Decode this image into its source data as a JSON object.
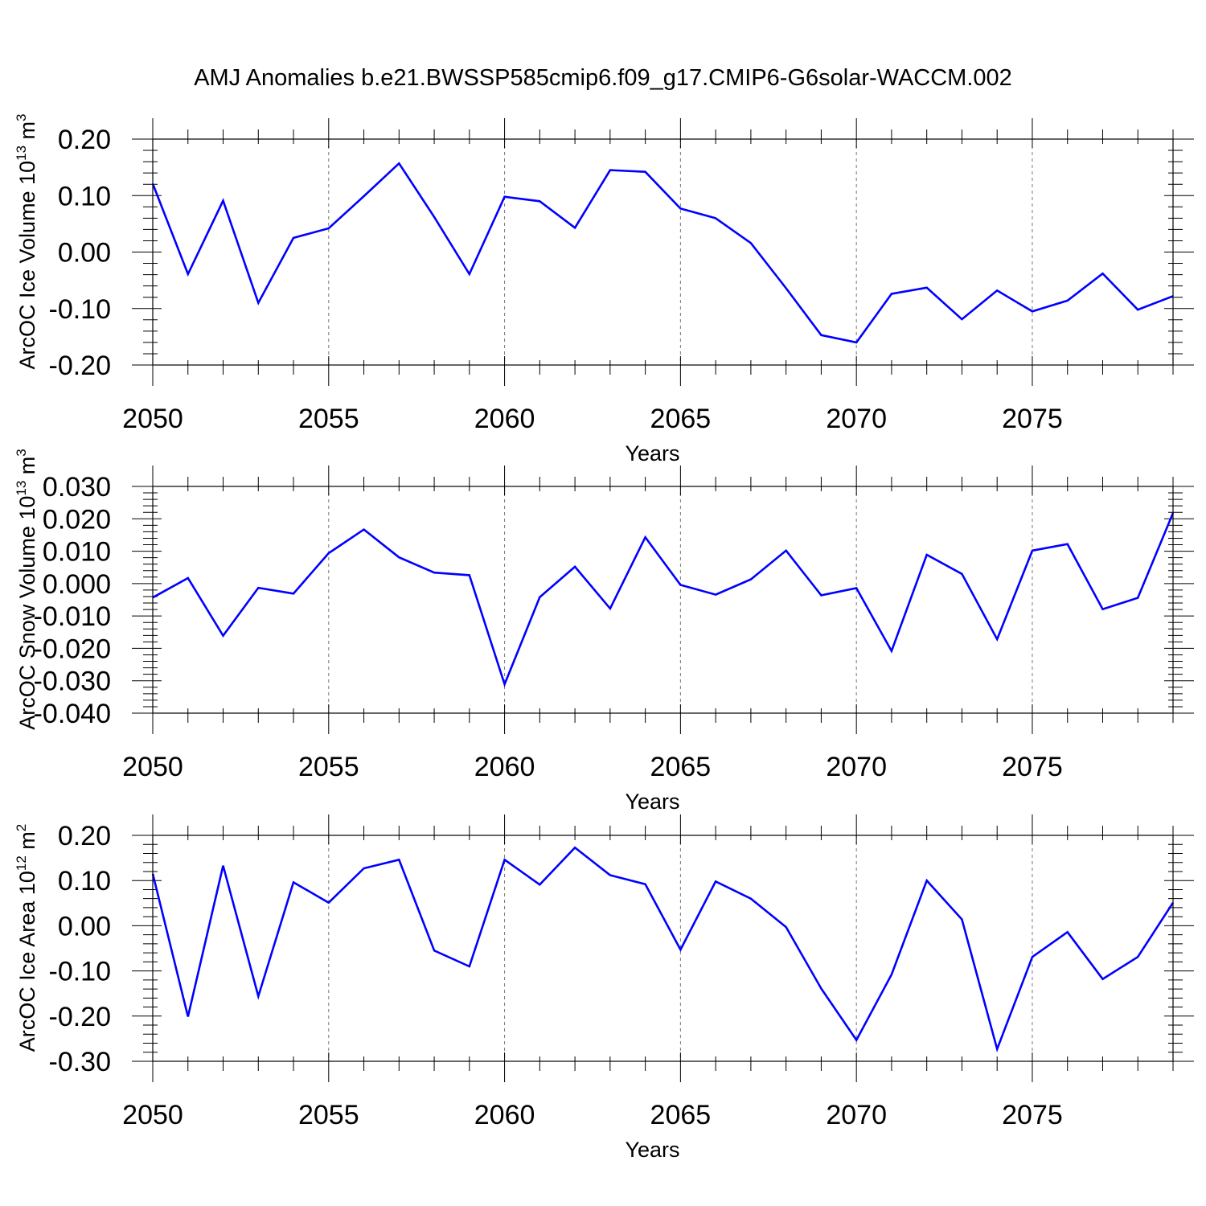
{
  "title": "AMJ Anomalies b.e21.BWSSP585cmip6.f09_g17.CMIP6-G6solar-WACCM.002",
  "colors": {
    "line": "#0000ff",
    "axis": "#000000",
    "grid": "#777777",
    "background": "#ffffff"
  },
  "chart_data": [
    {
      "type": "line",
      "ylabel_main": "ArcOC Ice Volume 10",
      "ylabel_exp": "13",
      "ylabel_unit": " m",
      "ylabel_unit_exp": "3",
      "xlabel": "Years",
      "xlim": [
        2050,
        2079
      ],
      "ylim": [
        -0.2,
        0.2
      ],
      "xticks": [
        2050,
        2055,
        2060,
        2065,
        2070,
        2075
      ],
      "xtick_labels": [
        "2050",
        "2055",
        "2060",
        "2065",
        "2070",
        "2075"
      ],
      "yticks": [
        -0.2,
        -0.1,
        0.0,
        0.1,
        0.2
      ],
      "ytick_labels": [
        "-0.20",
        "-0.10",
        "0.00",
        "0.10",
        "0.20"
      ],
      "y_minor_step": 0.02,
      "grid": "x dashed",
      "x": [
        2050,
        2051,
        2052,
        2053,
        2054,
        2055,
        2056,
        2057,
        2058,
        2059,
        2060,
        2061,
        2062,
        2063,
        2064,
        2065,
        2066,
        2067,
        2068,
        2069,
        2070,
        2071,
        2072,
        2073,
        2074,
        2075,
        2076,
        2077,
        2078,
        2079
      ],
      "values": [
        0.121,
        -0.039,
        0.091,
        -0.09,
        0.025,
        0.042,
        0.099,
        0.157,
        0.062,
        -0.039,
        0.098,
        0.09,
        0.043,
        0.145,
        0.142,
        0.077,
        0.06,
        0.016,
        -0.064,
        -0.147,
        -0.16,
        -0.074,
        -0.063,
        -0.119,
        -0.068,
        -0.105,
        -0.086,
        -0.038,
        -0.102,
        -0.078
      ]
    },
    {
      "type": "line",
      "ylabel_main": "ArcOC Snow Volume 10",
      "ylabel_exp": "13",
      "ylabel_unit": " m",
      "ylabel_unit_exp": "3",
      "xlabel": "Years",
      "xlim": [
        2050,
        2079
      ],
      "ylim": [
        -0.04,
        0.03
      ],
      "xticks": [
        2050,
        2055,
        2060,
        2065,
        2070,
        2075
      ],
      "xtick_labels": [
        "2050",
        "2055",
        "2060",
        "2065",
        "2070",
        "2075"
      ],
      "yticks": [
        -0.04,
        -0.03,
        -0.02,
        -0.01,
        0.0,
        0.01,
        0.02,
        0.03
      ],
      "ytick_labels": [
        "-0.040",
        "-0.030",
        "-0.020",
        "-0.010",
        "0.000",
        "0.010",
        "0.020",
        "0.030"
      ],
      "y_minor_step": 0.002,
      "grid": "x dashed",
      "x": [
        2050,
        2051,
        2052,
        2053,
        2054,
        2055,
        2056,
        2057,
        2058,
        2059,
        2060,
        2061,
        2062,
        2063,
        2064,
        2065,
        2066,
        2067,
        2068,
        2069,
        2070,
        2071,
        2072,
        2073,
        2074,
        2075,
        2076,
        2077,
        2078,
        2079
      ],
      "values": [
        -0.0043,
        0.0017,
        -0.0161,
        -0.0013,
        -0.0031,
        0.0094,
        0.0167,
        0.0081,
        0.0034,
        0.0026,
        -0.0311,
        -0.0042,
        0.0052,
        -0.0077,
        0.0143,
        -0.0004,
        -0.0034,
        0.0013,
        0.0102,
        -0.0036,
        -0.0014,
        -0.0208,
        0.0089,
        0.003,
        -0.0172,
        0.0102,
        0.0122,
        -0.0079,
        -0.0044,
        0.0218
      ]
    },
    {
      "type": "line",
      "ylabel_main": "ArcOC Ice Area 10",
      "ylabel_exp": "12",
      "ylabel_unit": " m",
      "ylabel_unit_exp": "2",
      "xlabel": "Years",
      "xlim": [
        2050,
        2079
      ],
      "ylim": [
        -0.3,
        0.2
      ],
      "xticks": [
        2050,
        2055,
        2060,
        2065,
        2070,
        2075
      ],
      "xtick_labels": [
        "2050",
        "2055",
        "2060",
        "2065",
        "2070",
        "2075"
      ],
      "yticks": [
        -0.3,
        -0.2,
        -0.1,
        0.0,
        0.1,
        0.2
      ],
      "ytick_labels": [
        "-0.30",
        "-0.20",
        "-0.10",
        "0.00",
        "0.10",
        "0.20"
      ],
      "y_minor_step": 0.02,
      "grid": "x dashed",
      "x": [
        2050,
        2051,
        2052,
        2053,
        2054,
        2055,
        2056,
        2057,
        2058,
        2059,
        2060,
        2061,
        2062,
        2063,
        2064,
        2065,
        2066,
        2067,
        2068,
        2069,
        2070,
        2071,
        2072,
        2073,
        2074,
        2075,
        2076,
        2077,
        2078,
        2079
      ],
      "values": [
        0.115,
        -0.201,
        0.133,
        -0.156,
        0.096,
        0.051,
        0.127,
        0.146,
        -0.055,
        -0.09,
        0.146,
        0.091,
        0.173,
        0.112,
        0.092,
        -0.053,
        0.098,
        0.06,
        -0.003,
        -0.139,
        -0.253,
        -0.108,
        0.1,
        0.014,
        -0.273,
        -0.069,
        -0.014,
        -0.118,
        -0.069,
        0.051
      ]
    }
  ]
}
